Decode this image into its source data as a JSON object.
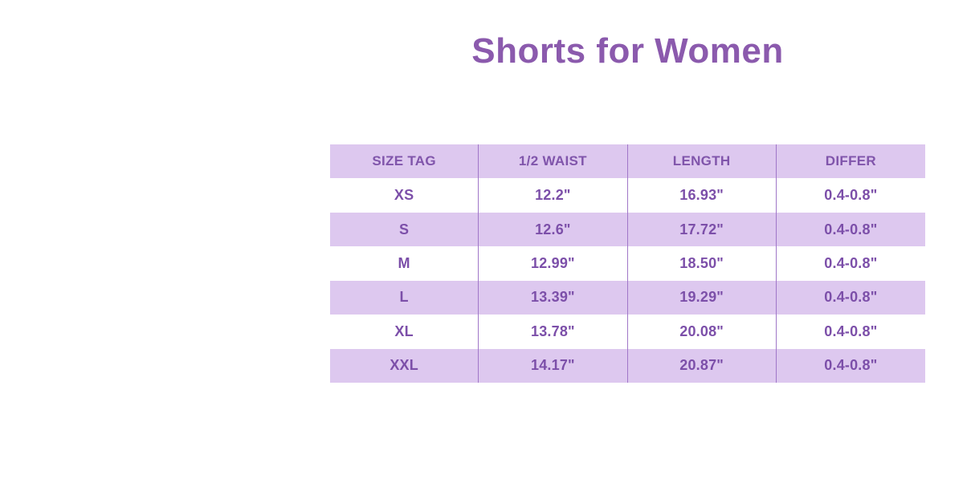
{
  "page": {
    "title": "Shorts for Women"
  },
  "colors": {
    "page-bg": "#ffffff",
    "title-color": "#8b5aad",
    "row-bg": "#ffffff",
    "row-alt-bg": "#ddc8ef",
    "divider-color": "#a077c8",
    "cell-text": "#7c4fa9",
    "header-text": "#8055ab"
  },
  "chart_data": {
    "type": "table",
    "title": "Shorts for Women",
    "columns": [
      "SIZE TAG",
      "1/2 WAIST",
      "LENGTH",
      "DIFFER"
    ],
    "rows": [
      [
        "XS",
        "12.2\"",
        "16.93\"",
        "0.4-0.8\""
      ],
      [
        "S",
        "12.6\"",
        "17.72\"",
        "0.4-0.8\""
      ],
      [
        "M",
        "12.99\"",
        "18.50\"",
        "0.4-0.8\""
      ],
      [
        "L",
        "13.39\"",
        "19.29\"",
        "0.4-0.8\""
      ],
      [
        "XL",
        "13.78\"",
        "20.08\"",
        "0.4-0.8\""
      ],
      [
        "XXL",
        "14.17\"",
        "20.87\"",
        "0.4-0.8\""
      ]
    ]
  }
}
